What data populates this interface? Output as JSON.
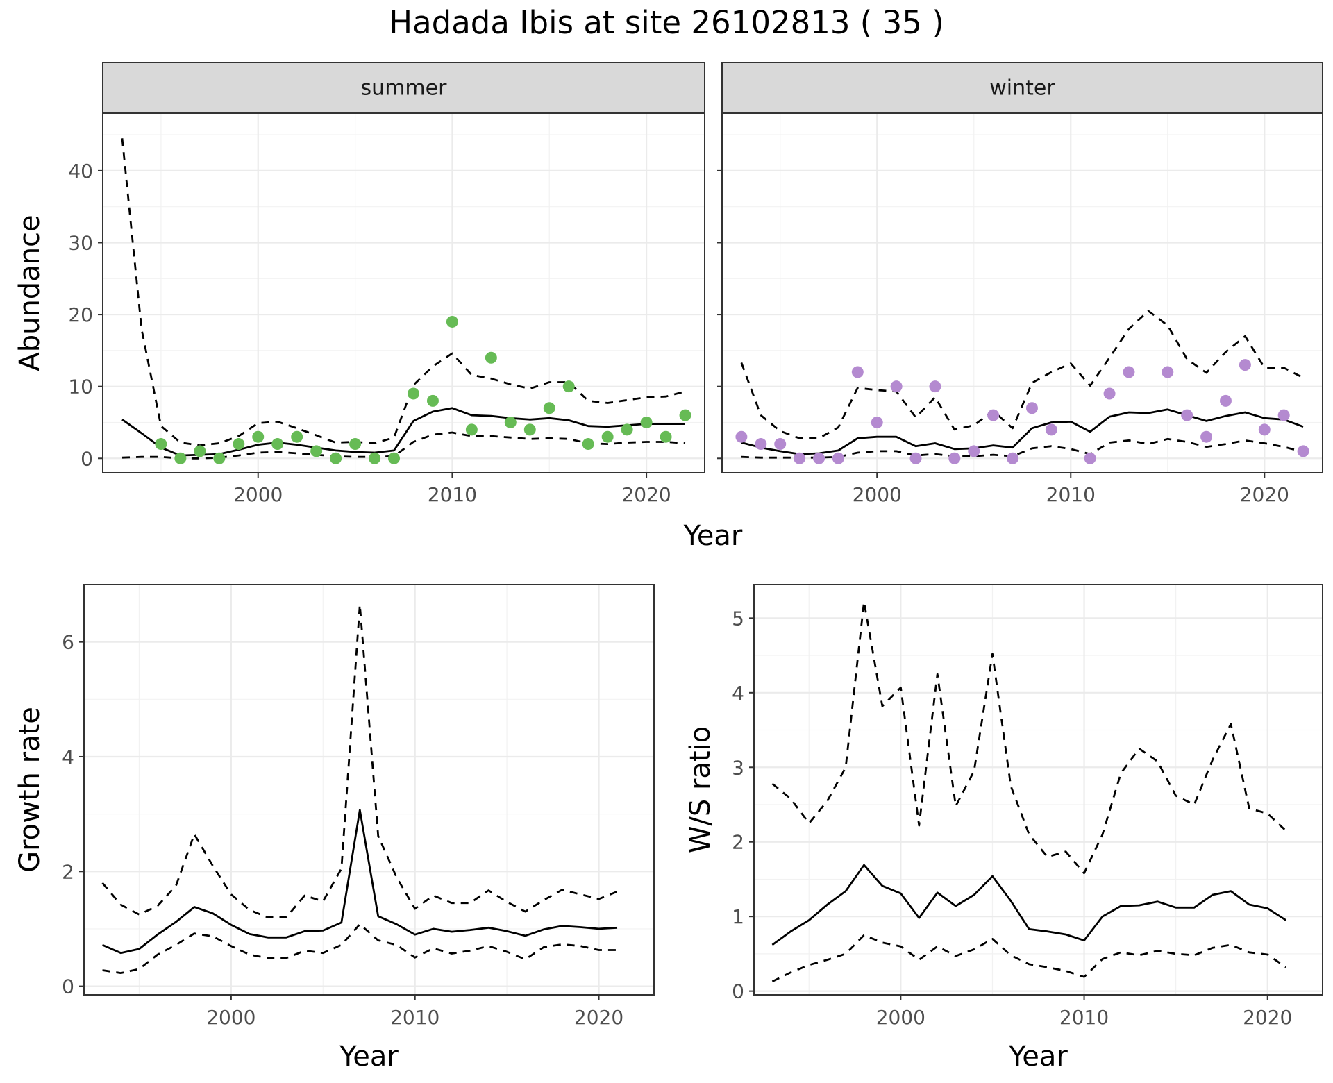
{
  "title": "Hadada Ibis at site 26102813 ( 35 )",
  "colors": {
    "summer_points": "#66bb55",
    "winter_points": "#b48ad0",
    "lines": "#000000",
    "strip_bg": "#d9d9d9",
    "grid": "#ebebeb"
  },
  "chart_data": [
    {
      "id": "summer",
      "type": "line",
      "facet_label": "summer",
      "xlabel": "",
      "ylabel": "Abundance",
      "xlim": [
        1992,
        2023
      ],
      "ylim": [
        -2,
        48
      ],
      "xticks": [
        2000,
        2010,
        2020
      ],
      "yticks": [
        0,
        10,
        20,
        30,
        40
      ],
      "grid": true,
      "series": [
        {
          "role": "mean",
          "style": "solid",
          "x": [
            1993,
            1994,
            1995,
            1996,
            1997,
            1998,
            1999,
            2000,
            2001,
            2002,
            2003,
            2004,
            2005,
            2006,
            2007,
            2008,
            2009,
            2010,
            2011,
            2012,
            2013,
            2014,
            2015,
            2016,
            2017,
            2018,
            2019,
            2020,
            2021,
            2022
          ],
          "y": [
            5.4,
            3.5,
            1.5,
            0.4,
            0.5,
            0.6,
            1.2,
            1.9,
            2.2,
            1.9,
            1.5,
            1.1,
            0.9,
            0.8,
            1.1,
            5.2,
            6.5,
            7.0,
            6.0,
            5.9,
            5.6,
            5.4,
            5.6,
            5.3,
            4.5,
            4.4,
            4.6,
            4.8,
            4.8,
            4.8
          ]
        },
        {
          "role": "upper",
          "style": "dashed",
          "x": [
            1993,
            1994,
            1995,
            1996,
            1997,
            1998,
            1999,
            2000,
            2001,
            2002,
            2003,
            2004,
            2005,
            2006,
            2007,
            2008,
            2009,
            2010,
            2011,
            2012,
            2013,
            2014,
            2015,
            2016,
            2017,
            2018,
            2019,
            2020,
            2021,
            2022
          ],
          "y": [
            44.5,
            18.0,
            4.5,
            2.2,
            1.8,
            2.1,
            3.1,
            4.9,
            5.1,
            4.2,
            3.2,
            2.2,
            2.3,
            2.1,
            2.9,
            10.2,
            12.8,
            14.6,
            11.6,
            11.1,
            10.3,
            9.7,
            10.6,
            10.6,
            8.0,
            7.7,
            8.1,
            8.5,
            8.6,
            9.3
          ]
        },
        {
          "role": "lower",
          "style": "dashed",
          "x": [
            1993,
            1994,
            1995,
            1996,
            1997,
            1998,
            1999,
            2000,
            2001,
            2002,
            2003,
            2004,
            2005,
            2006,
            2007,
            2008,
            2009,
            2010,
            2011,
            2012,
            2013,
            2014,
            2015,
            2016,
            2017,
            2018,
            2019,
            2020,
            2021,
            2022
          ],
          "y": [
            0.1,
            0.2,
            0.2,
            0.0,
            0.0,
            0.1,
            0.4,
            0.8,
            0.9,
            0.7,
            0.5,
            0.3,
            0.2,
            0.2,
            0.3,
            2.3,
            3.3,
            3.6,
            3.1,
            3.1,
            2.9,
            2.7,
            2.8,
            2.7,
            2.1,
            2.0,
            2.2,
            2.3,
            2.3,
            2.1
          ]
        },
        {
          "role": "observed",
          "style": "points",
          "x": [
            1995,
            1996,
            1997,
            1998,
            1999,
            2000,
            2001,
            2002,
            2003,
            2004,
            2005,
            2006,
            2007,
            2008,
            2009,
            2010,
            2011,
            2012,
            2013,
            2014,
            2015,
            2016,
            2017,
            2018,
            2019,
            2020,
            2021,
            2022
          ],
          "y": [
            2,
            0,
            1,
            0,
            2,
            3,
            2,
            3,
            1,
            0,
            2,
            0,
            0,
            9,
            8,
            19,
            4,
            14,
            5,
            4,
            7,
            10,
            2,
            3,
            4,
            5,
            3,
            6
          ]
        }
      ]
    },
    {
      "id": "winter",
      "type": "line",
      "facet_label": "winter",
      "xlabel": "",
      "ylabel": "",
      "xlim": [
        1992,
        2023
      ],
      "ylim": [
        -2,
        48
      ],
      "xticks": [
        2000,
        2010,
        2020
      ],
      "yticks": [
        0,
        10,
        20,
        30,
        40
      ],
      "grid": true,
      "series": [
        {
          "role": "mean",
          "style": "solid",
          "x": [
            1993,
            1994,
            1995,
            1996,
            1997,
            1998,
            1999,
            2000,
            2001,
            2002,
            2003,
            2004,
            2005,
            2006,
            2007,
            2008,
            2009,
            2010,
            2011,
            2012,
            2013,
            2014,
            2015,
            2016,
            2017,
            2018,
            2019,
            2020,
            2021,
            2022
          ],
          "y": [
            2.2,
            1.5,
            1.0,
            0.6,
            0.7,
            1.1,
            2.8,
            3.0,
            3.0,
            1.7,
            2.1,
            1.3,
            1.4,
            1.8,
            1.5,
            4.2,
            5.0,
            5.1,
            3.7,
            5.8,
            6.4,
            6.3,
            6.8,
            6.0,
            5.2,
            5.9,
            6.4,
            5.6,
            5.4,
            4.4
          ]
        },
        {
          "role": "upper",
          "style": "dashed",
          "x": [
            1993,
            1994,
            1995,
            1996,
            1997,
            1998,
            1999,
            2000,
            2001,
            2002,
            2003,
            2004,
            2005,
            2006,
            2007,
            2008,
            2009,
            2010,
            2011,
            2012,
            2013,
            2014,
            2015,
            2016,
            2017,
            2018,
            2019,
            2020,
            2021,
            2022
          ],
          "y": [
            13.3,
            6.0,
            3.8,
            2.8,
            2.8,
            4.3,
            9.8,
            9.5,
            9.3,
            5.7,
            8.5,
            4.0,
            4.6,
            6.6,
            4.2,
            10.5,
            12.0,
            13.2,
            10.1,
            14.0,
            18.0,
            20.5,
            18.5,
            13.8,
            11.9,
            14.8,
            17.0,
            12.6,
            12.6,
            11.2
          ]
        },
        {
          "role": "lower",
          "style": "dashed",
          "x": [
            1993,
            1994,
            1995,
            1996,
            1997,
            1998,
            1999,
            2000,
            2001,
            2002,
            2003,
            2004,
            2005,
            2006,
            2007,
            2008,
            2009,
            2010,
            2011,
            2012,
            2013,
            2014,
            2015,
            2016,
            2017,
            2018,
            2019,
            2020,
            2021,
            2022
          ],
          "y": [
            0.2,
            0.1,
            0.1,
            0.1,
            0.1,
            0.2,
            0.8,
            1.0,
            1.0,
            0.4,
            0.6,
            0.3,
            0.3,
            0.5,
            0.3,
            1.4,
            1.7,
            1.3,
            0.6,
            2.2,
            2.5,
            2.0,
            2.7,
            2.3,
            1.6,
            2.0,
            2.5,
            2.1,
            1.6,
            0.9
          ]
        },
        {
          "role": "observed",
          "style": "points",
          "x": [
            1993,
            1994,
            1995,
            1996,
            1997,
            1998,
            1999,
            2000,
            2001,
            2002,
            2003,
            2004,
            2005,
            2006,
            2007,
            2008,
            2009,
            2010,
            2011,
            2012,
            2013,
            2014,
            2015,
            2016,
            2017,
            2018,
            2019,
            2020,
            2021,
            2022
          ],
          "y": [
            3,
            2,
            2,
            0,
            0,
            0,
            12,
            5,
            10,
            0,
            10,
            0,
            1,
            6,
            0,
            7,
            4,
            null,
            0,
            9,
            12,
            null,
            12,
            6,
            3,
            8,
            13,
            4,
            6,
            1
          ]
        }
      ]
    },
    {
      "id": "growth",
      "type": "line",
      "xlabel": "Year",
      "ylabel": "Growth rate",
      "xlim": [
        1992,
        2023
      ],
      "ylim": [
        -0.15,
        7.0
      ],
      "xticks": [
        2000,
        2010,
        2020
      ],
      "yticks": [
        0,
        2,
        4,
        6
      ],
      "grid": true,
      "series": [
        {
          "role": "mean",
          "style": "solid",
          "x": [
            1993,
            1994,
            1995,
            1996,
            1997,
            1998,
            1999,
            2000,
            2001,
            2002,
            2003,
            2004,
            2005,
            2006,
            2007,
            2008,
            2009,
            2010,
            2011,
            2012,
            2013,
            2014,
            2015,
            2016,
            2017,
            2018,
            2019,
            2020,
            2021
          ],
          "y": [
            0.72,
            0.58,
            0.65,
            0.9,
            1.12,
            1.38,
            1.27,
            1.07,
            0.91,
            0.85,
            0.85,
            0.96,
            0.97,
            1.11,
            3.07,
            1.22,
            1.08,
            0.9,
            1.0,
            0.95,
            0.98,
            1.02,
            0.96,
            0.88,
            0.99,
            1.05,
            1.03,
            1.0,
            1.02
          ]
        },
        {
          "role": "upper",
          "style": "dashed",
          "x": [
            1993,
            1994,
            1995,
            1996,
            1997,
            1998,
            1999,
            2000,
            2001,
            2002,
            2003,
            2004,
            2005,
            2006,
            2007,
            2008,
            2009,
            2010,
            2011,
            2012,
            2013,
            2014,
            2015,
            2016,
            2017,
            2018,
            2019,
            2020,
            2021
          ],
          "y": [
            1.8,
            1.42,
            1.25,
            1.4,
            1.75,
            2.65,
            2.1,
            1.6,
            1.33,
            1.2,
            1.2,
            1.58,
            1.48,
            2.05,
            6.65,
            2.62,
            1.9,
            1.35,
            1.58,
            1.45,
            1.45,
            1.67,
            1.47,
            1.3,
            1.5,
            1.68,
            1.6,
            1.52,
            1.65
          ]
        },
        {
          "role": "lower",
          "style": "dashed",
          "x": [
            1993,
            1994,
            1995,
            1996,
            1997,
            1998,
            1999,
            2000,
            2001,
            2002,
            2003,
            2004,
            2005,
            2006,
            2007,
            2008,
            2009,
            2010,
            2011,
            2012,
            2013,
            2014,
            2015,
            2016,
            2017,
            2018,
            2019,
            2020,
            2021
          ],
          "y": [
            0.28,
            0.23,
            0.3,
            0.55,
            0.72,
            0.92,
            0.87,
            0.7,
            0.55,
            0.49,
            0.49,
            0.62,
            0.58,
            0.72,
            1.08,
            0.8,
            0.72,
            0.5,
            0.66,
            0.57,
            0.62,
            0.7,
            0.6,
            0.47,
            0.68,
            0.73,
            0.7,
            0.63,
            0.63
          ]
        }
      ]
    },
    {
      "id": "ratio",
      "type": "line",
      "xlabel": "Year",
      "ylabel": "W/S ratio",
      "xlim": [
        1992,
        2023
      ],
      "ylim": [
        -0.05,
        5.45
      ],
      "xticks": [
        2000,
        2010,
        2020
      ],
      "yticks": [
        0,
        1,
        2,
        3,
        4,
        5
      ],
      "grid": true,
      "series": [
        {
          "role": "mean",
          "style": "solid",
          "x": [
            1993,
            1994,
            1995,
            1996,
            1997,
            1998,
            1999,
            2000,
            2001,
            2002,
            2003,
            2004,
            2005,
            2006,
            2007,
            2008,
            2009,
            2010,
            2011,
            2012,
            2013,
            2014,
            2015,
            2016,
            2017,
            2018,
            2019,
            2020,
            2021
          ],
          "y": [
            0.62,
            0.8,
            0.95,
            1.16,
            1.34,
            1.69,
            1.41,
            1.31,
            0.98,
            1.32,
            1.14,
            1.29,
            1.54,
            1.21,
            0.83,
            0.8,
            0.76,
            0.68,
            1.0,
            1.14,
            1.15,
            1.2,
            1.12,
            1.12,
            1.29,
            1.34,
            1.16,
            1.11,
            0.95
          ]
        },
        {
          "role": "upper",
          "style": "dashed",
          "x": [
            1993,
            1994,
            1995,
            1996,
            1997,
            1998,
            1999,
            2000,
            2001,
            2002,
            2003,
            2004,
            2005,
            2006,
            2007,
            2008,
            2009,
            2010,
            2011,
            2012,
            2013,
            2014,
            2015,
            2016,
            2017,
            2018,
            2019,
            2020,
            2021
          ],
          "y": [
            2.78,
            2.58,
            2.25,
            2.55,
            3.0,
            5.22,
            3.82,
            4.07,
            2.22,
            4.25,
            2.48,
            2.95,
            4.52,
            2.75,
            2.1,
            1.8,
            1.87,
            1.58,
            2.1,
            2.92,
            3.25,
            3.08,
            2.62,
            2.5,
            3.1,
            3.58,
            2.45,
            2.38,
            2.15
          ]
        },
        {
          "role": "lower",
          "style": "dashed",
          "x": [
            1993,
            1994,
            1995,
            1996,
            1997,
            1998,
            1999,
            2000,
            2001,
            2002,
            2003,
            2004,
            2005,
            2006,
            2007,
            2008,
            2009,
            2010,
            2011,
            2012,
            2013,
            2014,
            2015,
            2016,
            2017,
            2018,
            2019,
            2020,
            2021
          ],
          "y": [
            0.13,
            0.25,
            0.35,
            0.42,
            0.5,
            0.75,
            0.65,
            0.6,
            0.42,
            0.6,
            0.47,
            0.56,
            0.7,
            0.48,
            0.36,
            0.32,
            0.27,
            0.19,
            0.43,
            0.52,
            0.48,
            0.54,
            0.5,
            0.48,
            0.58,
            0.62,
            0.52,
            0.49,
            0.32
          ]
        }
      ]
    }
  ],
  "shared_xlabel": "Year"
}
